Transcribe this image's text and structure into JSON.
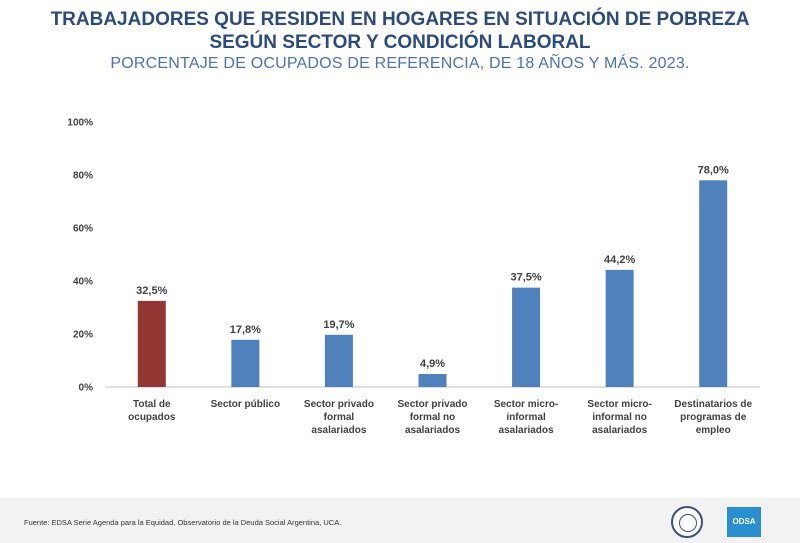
{
  "header": {
    "title_line1": "TRABAJADORES QUE RESIDEN EN HOGARES EN SITUACIÓN DE POBREZA",
    "title_line2": "SEGÚN SECTOR Y CONDICIÓN LABORAL",
    "subtitle": "PORCENTAJE DE OCUPADOS DE REFERENCIA, DE 18 AÑOS Y MÁS. 2023."
  },
  "footer": {
    "source": "Fuente: EDSA Serie Agenda para la Equidad, Observatorio de la Deuda Social Argentina, UCA.",
    "logo_text": "ODSA"
  },
  "chart_data": {
    "type": "bar",
    "categories": [
      [
        "Total de",
        "ocupados"
      ],
      [
        "Sector público"
      ],
      [
        "Sector privado",
        "formal",
        "asalariados"
      ],
      [
        "Sector privado",
        "formal no",
        "asalariados"
      ],
      [
        "Sector micro-",
        "informal",
        "asalariados"
      ],
      [
        "Sector micro-",
        "informal no",
        "asalariados"
      ],
      [
        "Destinatarios de",
        "programas de",
        "empleo"
      ]
    ],
    "values": [
      32.5,
      17.8,
      19.7,
      4.9,
      37.5,
      44.2,
      78.0
    ],
    "data_labels": [
      "32,5%",
      "17,8%",
      "19,7%",
      "4,9%",
      "37,5%",
      "44,2%",
      "78,0%"
    ],
    "bar_colors": [
      "#943634",
      "#4f81bd",
      "#4f81bd",
      "#4f81bd",
      "#4f81bd",
      "#4f81bd",
      "#4f81bd"
    ],
    "ylim": [
      0,
      100
    ],
    "yticks": [
      0,
      20,
      40,
      60,
      80,
      100
    ],
    "ytick_labels": [
      "0%",
      "20%",
      "40%",
      "60%",
      "80%",
      "100%"
    ],
    "grid": false,
    "legend": "none"
  }
}
